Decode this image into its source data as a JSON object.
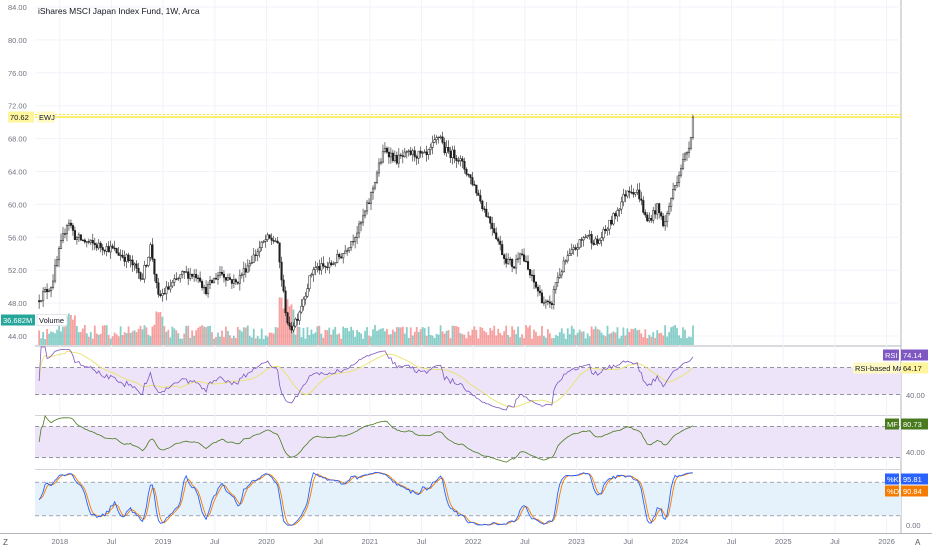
{
  "header": {
    "title": "iShares MSCI Japan Index Fund, 1W, Arca"
  },
  "colors": {
    "up": "#26a69a",
    "down": "#ef5350",
    "candle": "#1e1e1e",
    "highline": "#ffe400",
    "rsi": "#7e57c2",
    "rsi_ma": "#e9e26a",
    "mfi": "#4a7a1e",
    "stoch_k": "#2962ff",
    "stoch_d": "#f57c00",
    "band_purple": "#ede4f9",
    "band_blue": "#e6f2fb"
  },
  "chart_data": [
    {
      "type": "candlestick",
      "title": "iShares MSCI Japan Index Fund, 1W, Arca",
      "series_name": "EWJ",
      "last_value": "70.62",
      "resistance": 70.62,
      "ylim": [
        44,
        84
      ],
      "y_ticks": [
        "84.00",
        "80.00",
        "76.00",
        "72.00",
        "68.00",
        "64.00",
        "60.00",
        "56.00",
        "52.00",
        "48.00",
        "44.00"
      ],
      "close_path": [
        [
          2017.8,
          48.6
        ],
        [
          2017.92,
          50.2
        ],
        [
          2018.0,
          54.6
        ],
        [
          2018.08,
          58.2
        ],
        [
          2018.15,
          56.0
        ],
        [
          2018.3,
          55.2
        ],
        [
          2018.5,
          54.6
        ],
        [
          2018.65,
          53.4
        ],
        [
          2018.8,
          51.2
        ],
        [
          2018.88,
          55.0
        ],
        [
          2018.95,
          48.6
        ],
        [
          2019.05,
          49.8
        ],
        [
          2019.2,
          51.6
        ],
        [
          2019.35,
          51.4
        ],
        [
          2019.4,
          49.4
        ],
        [
          2019.55,
          51.8
        ],
        [
          2019.7,
          50.4
        ],
        [
          2019.85,
          53.2
        ],
        [
          2020.0,
          55.8
        ],
        [
          2020.1,
          55.6
        ],
        [
          2020.18,
          47.6
        ],
        [
          2020.22,
          44.6
        ],
        [
          2020.3,
          46.4
        ],
        [
          2020.45,
          52.2
        ],
        [
          2020.6,
          52.4
        ],
        [
          2020.75,
          54.2
        ],
        [
          2020.9,
          57.2
        ],
        [
          2021.0,
          60.6
        ],
        [
          2021.08,
          64.4
        ],
        [
          2021.15,
          66.8
        ],
        [
          2021.25,
          65.4
        ],
        [
          2021.4,
          66.2
        ],
        [
          2021.55,
          65.8
        ],
        [
          2021.68,
          68.6
        ],
        [
          2021.72,
          66.6
        ],
        [
          2021.85,
          65.8
        ],
        [
          2022.0,
          62.6
        ],
        [
          2022.1,
          59.6
        ],
        [
          2022.2,
          57.0
        ],
        [
          2022.3,
          53.6
        ],
        [
          2022.4,
          52.4
        ],
        [
          2022.45,
          54.6
        ],
        [
          2022.55,
          51.4
        ],
        [
          2022.68,
          48.2
        ],
        [
          2022.75,
          47.4
        ],
        [
          2022.8,
          50.6
        ],
        [
          2022.9,
          53.2
        ],
        [
          2023.0,
          54.8
        ],
        [
          2023.1,
          56.4
        ],
        [
          2023.2,
          55.2
        ],
        [
          2023.35,
          58.2
        ],
        [
          2023.5,
          62.0
        ],
        [
          2023.6,
          61.4
        ],
        [
          2023.68,
          57.8
        ],
        [
          2023.78,
          59.6
        ],
        [
          2023.85,
          57.4
        ],
        [
          2023.92,
          61.0
        ],
        [
          2024.0,
          64.2
        ],
        [
          2024.08,
          66.8
        ],
        [
          2024.14,
          70.6
        ]
      ],
      "volume": {
        "label": "Volume",
        "last_value": "36.682M"
      }
    },
    {
      "type": "line",
      "series": [
        {
          "name": "RSI",
          "last_value": "74.14"
        },
        {
          "name": "RSI-based MA",
          "last_value": "64.17"
        }
      ],
      "y_ticks": [
        "40.00"
      ],
      "bands": [
        30,
        70
      ]
    },
    {
      "type": "line",
      "series": [
        {
          "name": "MF",
          "last_value": "80.73"
        }
      ],
      "y_ticks": [
        "40.00"
      ],
      "bands": [
        20,
        80
      ]
    },
    {
      "type": "line",
      "series": [
        {
          "name": "%K",
          "last_value": "95.81"
        },
        {
          "name": "%D",
          "last_value": "90.84"
        }
      ],
      "y_ticks": [
        "0.00"
      ],
      "bands": [
        20,
        80
      ]
    }
  ],
  "x_axis": {
    "ticks": [
      {
        "t": 2018.0,
        "label": "2018"
      },
      {
        "t": 2018.5,
        "label": "Jul"
      },
      {
        "t": 2019.0,
        "label": "2019"
      },
      {
        "t": 2019.5,
        "label": "Jul"
      },
      {
        "t": 2020.0,
        "label": "2020"
      },
      {
        "t": 2020.5,
        "label": "Jul"
      },
      {
        "t": 2021.0,
        "label": "2021"
      },
      {
        "t": 2021.5,
        "label": "Jul"
      },
      {
        "t": 2022.0,
        "label": "2022"
      },
      {
        "t": 2022.5,
        "label": "Jul"
      },
      {
        "t": 2023.0,
        "label": "2023"
      },
      {
        "t": 2023.5,
        "label": "Jul"
      },
      {
        "t": 2024.0,
        "label": "2024"
      },
      {
        "t": 2024.5,
        "label": "Jul"
      },
      {
        "t": 2025.0,
        "label": "2025"
      },
      {
        "t": 2025.5,
        "label": "Jul"
      },
      {
        "t": 2026.0,
        "label": "2026"
      }
    ],
    "range": [
      2017.76,
      2026.14
    ]
  },
  "footer": {
    "left_button": "Z",
    "right_button": "A"
  }
}
